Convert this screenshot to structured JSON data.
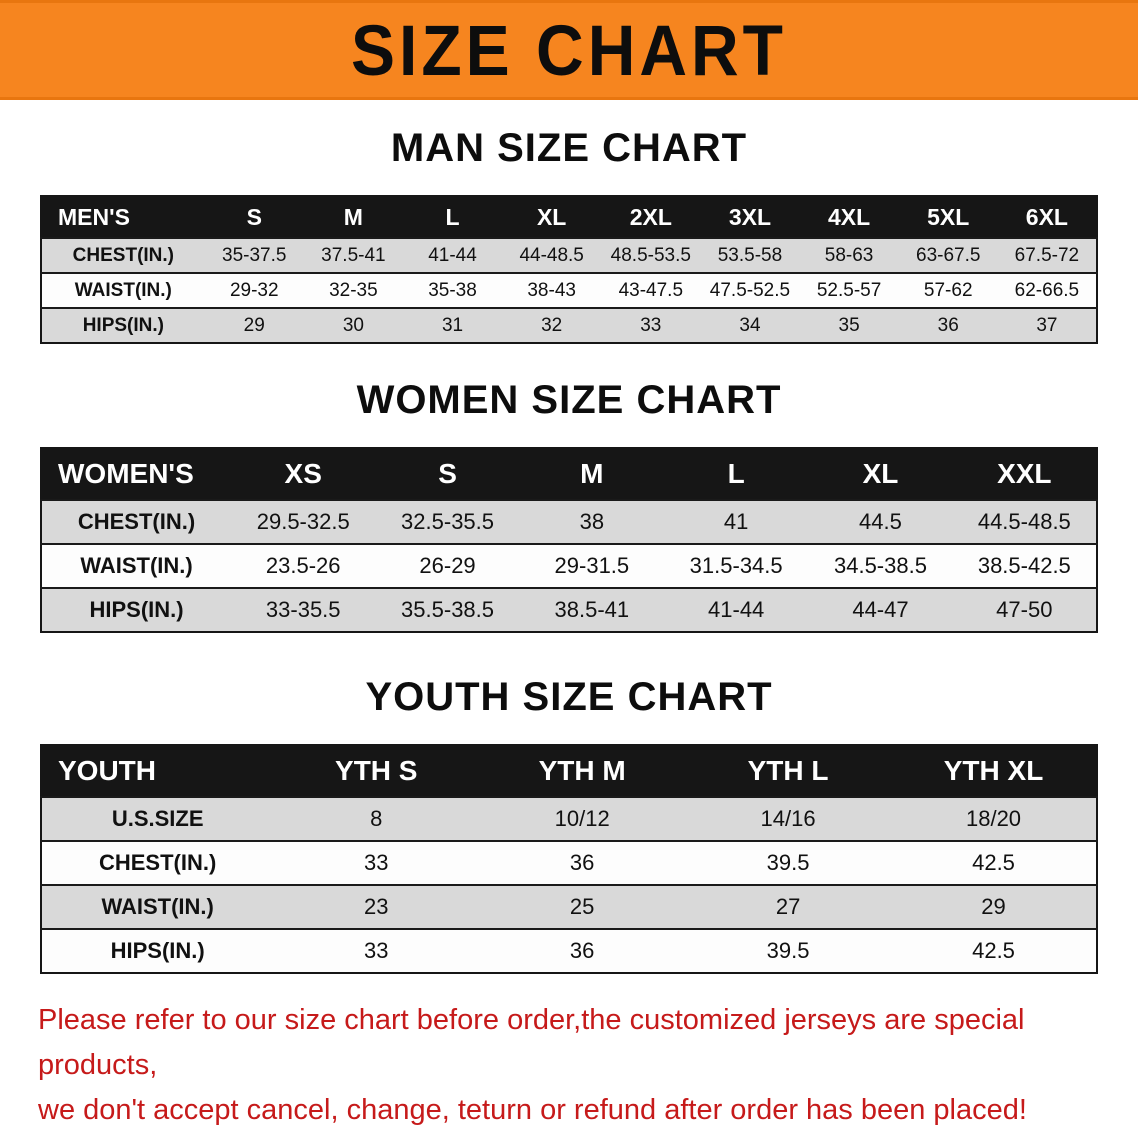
{
  "banner": {
    "title": "SIZE CHART"
  },
  "sections": [
    {
      "heading": "MAN SIZE CHART",
      "table": {
        "header": [
          "MEN'S",
          "S",
          "M",
          "L",
          "XL",
          "2XL",
          "3XL",
          "4XL",
          "5XL",
          "6XL"
        ],
        "rows": [
          [
            "CHEST(IN.)",
            "35-37.5",
            "37.5-41",
            "41-44",
            "44-48.5",
            "48.5-53.5",
            "53.5-58",
            "58-63",
            "63-67.5",
            "67.5-72"
          ],
          [
            "WAIST(IN.)",
            "29-32",
            "32-35",
            "35-38",
            "38-43",
            "43-47.5",
            "47.5-52.5",
            "52.5-57",
            "57-62",
            "62-66.5"
          ],
          [
            "HIPS(IN.)",
            "29",
            "30",
            "31",
            "32",
            "33",
            "34",
            "35",
            "36",
            "37"
          ]
        ]
      }
    },
    {
      "heading": "WOMEN SIZE CHART",
      "table": {
        "header": [
          "WOMEN'S",
          "XS",
          "S",
          "M",
          "L",
          "XL",
          "XXL"
        ],
        "rows": [
          [
            "CHEST(IN.)",
            "29.5-32.5",
            "32.5-35.5",
            "38",
            "41",
            "44.5",
            "44.5-48.5"
          ],
          [
            "WAIST(IN.)",
            "23.5-26",
            "26-29",
            "29-31.5",
            "31.5-34.5",
            "34.5-38.5",
            "38.5-42.5"
          ],
          [
            "HIPS(IN.)",
            "33-35.5",
            "35.5-38.5",
            "38.5-41",
            "41-44",
            "44-47",
            "47-50"
          ]
        ]
      }
    },
    {
      "heading": "YOUTH SIZE CHART",
      "table": {
        "header": [
          "YOUTH",
          "YTH S",
          "YTH M",
          "YTH L",
          "YTH XL"
        ],
        "rows": [
          [
            "U.S.SIZE",
            "8",
            "10/12",
            "14/16",
            "18/20"
          ],
          [
            "CHEST(IN.)",
            "33",
            "36",
            "39.5",
            "42.5"
          ],
          [
            "WAIST(IN.)",
            "23",
            "25",
            "27",
            "29"
          ],
          [
            "HIPS(IN.)",
            "33",
            "36",
            "39.5",
            "42.5"
          ]
        ]
      }
    }
  ],
  "disclaimer": {
    "line1": "Please refer to our size chart before order,the customized jerseys are special products,",
    "line2": "we don't accept cancel, change, teturn or refund after order has been placed!"
  },
  "colors": {
    "banner_bg": "#f6851f",
    "table_header_bg": "#161616",
    "row_alt_bg": "#d9d9d9",
    "disclaimer_red": "#c61a1a"
  }
}
